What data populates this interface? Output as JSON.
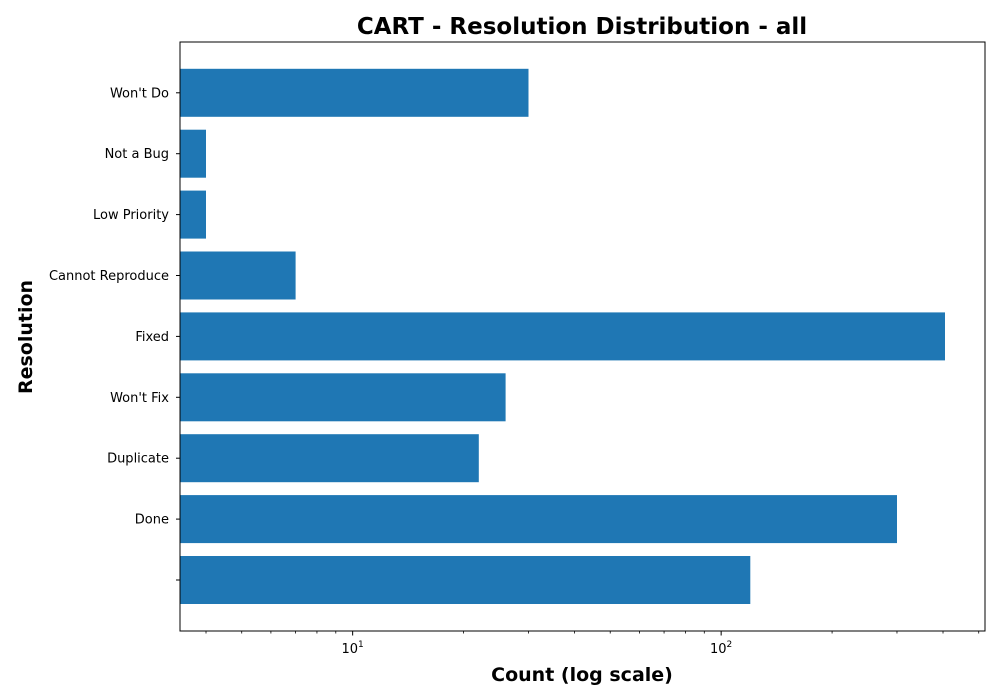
{
  "chart_data": {
    "type": "bar",
    "orientation": "horizontal",
    "title": "CART - Resolution Distribution - all",
    "xlabel": "Count (log scale)",
    "ylabel": "Resolution",
    "x_scale": "log",
    "xlim": [
      3.4,
      520
    ],
    "x_major_ticks": [
      {
        "base": "10",
        "exp": "1",
        "value": 10
      },
      {
        "base": "10",
        "exp": "2",
        "value": 100
      }
    ],
    "categories": [
      "",
      "Done",
      "Duplicate",
      "Won't Fix",
      "Fixed",
      "Cannot Reproduce",
      "Low Priority",
      "Not a Bug",
      "Won't Do"
    ],
    "values": [
      120,
      300,
      22,
      26,
      405,
      7,
      4,
      4,
      30
    ],
    "bar_color": "#1f77b4",
    "grid": false,
    "legend": "none"
  }
}
